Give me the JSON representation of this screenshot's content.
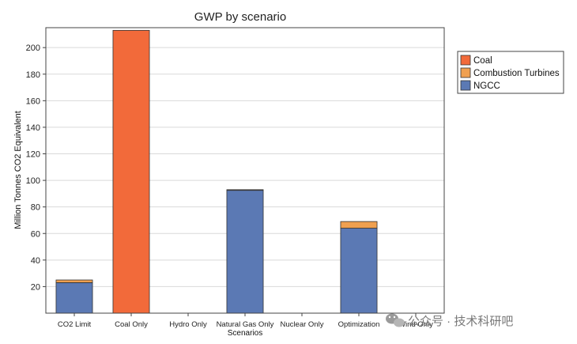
{
  "chart_data": {
    "type": "bar",
    "stacked": true,
    "title": "GWP by scenario",
    "xlabel": "Scenarios",
    "ylabel": "Million Tonnes CO2 Equivalent",
    "ylim": [
      0,
      215
    ],
    "yticks": [
      20,
      40,
      60,
      80,
      100,
      120,
      140,
      160,
      180,
      200
    ],
    "grid": true,
    "legend_position": "right",
    "categories": [
      "CO2 Limit",
      "Coal Only",
      "Hydro Only",
      "Natural Gas Only",
      "Nuclear Only",
      "Optimization",
      "Wind Only"
    ],
    "series": [
      {
        "name": "NGCC",
        "color": "#5b79b4",
        "values": [
          23,
          0,
          0,
          92.5,
          0,
          64,
          0
        ]
      },
      {
        "name": "Combustion Turbines",
        "color": "#f0a050",
        "values": [
          2,
          0,
          0,
          0.5,
          0,
          5,
          0
        ]
      },
      {
        "name": "Coal",
        "color": "#f26a3a",
        "values": [
          0,
          213,
          0,
          0,
          0,
          0,
          0
        ]
      }
    ],
    "legend_order": [
      "Coal",
      "Combustion Turbines",
      "NGCC"
    ]
  },
  "watermark": {
    "icon": "wechat-icon",
    "text": "公众号 · 技术科研吧"
  }
}
